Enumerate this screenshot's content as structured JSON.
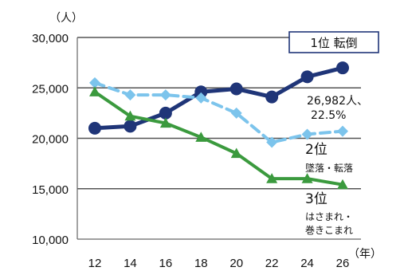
{
  "chart_data": {
    "type": "line",
    "y_unit": "（人）",
    "x_unit": "（年）",
    "categories": [
      "12",
      "14",
      "16",
      "18",
      "20",
      "22",
      "24",
      "26"
    ],
    "ylim": [
      10000,
      30000
    ],
    "yticks": [
      10000,
      15000,
      20000,
      25000,
      30000
    ],
    "ytick_labels": [
      "10,000",
      "15,000",
      "20,000",
      "25,000",
      "30,000"
    ],
    "grid": "horizontal",
    "series": [
      {
        "values": [
          21000,
          21200,
          22500,
          24600,
          24900,
          24100,
          26100,
          26982
        ],
        "color": "#1f3578",
        "line": "solid",
        "marker": "circle"
      },
      {
        "values": [
          25500,
          24300,
          24300,
          24000,
          22500,
          19600,
          20400,
          20700
        ],
        "color": "#7cc4ec",
        "line": "dashed",
        "marker": "diamond"
      },
      {
        "values": [
          24600,
          22200,
          21500,
          20100,
          18500,
          16000,
          16000,
          15400
        ],
        "color": "#3b9a3e",
        "line": "solid",
        "marker": "triangle"
      }
    ],
    "annotations": {
      "rank1": "1位 転倒",
      "rank1_value": "26,982人、",
      "rank1_pct": "22.5%",
      "rank2": "2位",
      "rank2_desc": "墜落・転落",
      "rank3": "3位",
      "rank3_desc_1": "はさまれ・",
      "rank3_desc_2": "巻きこまれ"
    }
  }
}
